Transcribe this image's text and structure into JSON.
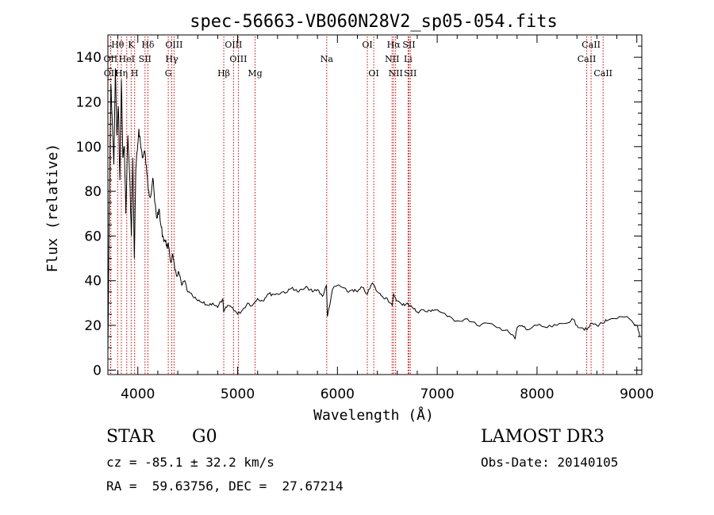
{
  "chart_data": {
    "type": "line",
    "title": "spec-56663-VB060N28V2_sp05-054.fits",
    "xlabel": "Wavelength (Å)",
    "ylabel": "Flux (relative)",
    "xlim": [
      3700,
      9050
    ],
    "ylim": [
      -2,
      150
    ],
    "xticks": [
      4000,
      5000,
      6000,
      7000,
      8000,
      9000
    ],
    "yticks": [
      0,
      20,
      40,
      60,
      80,
      100,
      120,
      140
    ],
    "grid": false,
    "series": [
      {
        "name": "spectrum",
        "color": "#000000",
        "x": [
          3700,
          3715,
          3730,
          3745,
          3760,
          3775,
          3790,
          3805,
          3820,
          3835,
          3850,
          3865,
          3880,
          3900,
          3920,
          3935,
          3950,
          3965,
          3980,
          3995,
          4010,
          4030,
          4050,
          4070,
          4090,
          4110,
          4130,
          4150,
          4170,
          4190,
          4210,
          4230,
          4250,
          4270,
          4290,
          4310,
          4330,
          4350,
          4370,
          4390,
          4410,
          4440,
          4470,
          4500,
          4550,
          4600,
          4650,
          4700,
          4750,
          4800,
          4850,
          4860,
          4900,
          4950,
          5000,
          5050,
          5100,
          5150,
          5200,
          5250,
          5300,
          5350,
          5400,
          5450,
          5500,
          5550,
          5600,
          5650,
          5700,
          5750,
          5800,
          5850,
          5890,
          5900,
          5950,
          6000,
          6050,
          6100,
          6150,
          6200,
          6250,
          6300,
          6350,
          6400,
          6450,
          6500,
          6550,
          6563,
          6600,
          6650,
          6700,
          6750,
          6800,
          6850,
          6900,
          6950,
          7000,
          7100,
          7200,
          7300,
          7400,
          7500,
          7600,
          7700,
          7780,
          7800,
          7850,
          7900,
          8000,
          8100,
          8200,
          8300,
          8350,
          8400,
          8450,
          8500,
          8550,
          8600,
          8650,
          8700,
          8800,
          8900,
          9000,
          9030
        ],
        "values": [
          8,
          75,
          128,
          110,
          92,
          135,
          105,
          118,
          85,
          130,
          95,
          100,
          70,
          105,
          85,
          60,
          95,
          50,
          90,
          98,
          108,
          100,
          95,
          98,
          88,
          80,
          78,
          86,
          75,
          68,
          72,
          65,
          60,
          58,
          56,
          55,
          48,
          52,
          45,
          42,
          44,
          38,
          40,
          35,
          33,
          31,
          30,
          29,
          30,
          28,
          32,
          26,
          29,
          28,
          25,
          27,
          30,
          29,
          32,
          31,
          34,
          34,
          34,
          35,
          35,
          37,
          35,
          36,
          37,
          35,
          36,
          33,
          38,
          24,
          36,
          38,
          37,
          35,
          36,
          35,
          37,
          34,
          39,
          35,
          33,
          32,
          29,
          34,
          31,
          29,
          30,
          28,
          26,
          27,
          26,
          27,
          27,
          24,
          22,
          23,
          20,
          21,
          19,
          18,
          14,
          19,
          20,
          18,
          20,
          19,
          20,
          21,
          23,
          20,
          19,
          18,
          21,
          20,
          21,
          22,
          23,
          24,
          20,
          15
        ]
      }
    ],
    "lines": [
      {
        "label": "Hθ",
        "x": 3798,
        "row": 0
      },
      {
        "label": "K",
        "x": 3933,
        "row": 0
      },
      {
        "label": "Hδ",
        "x": 4101,
        "row": 0
      },
      {
        "label": "OIII",
        "x": 4363,
        "row": 0
      },
      {
        "label": "OIII",
        "x": 4959,
        "row": 0
      },
      {
        "label": "OI",
        "x": 6300,
        "row": 0
      },
      {
        "label": "Hα",
        "x": 6563,
        "row": 0
      },
      {
        "label": "SII",
        "x": 6717,
        "row": 0
      },
      {
        "label": "CaII",
        "x": 8542,
        "row": 0
      },
      {
        "label": "OII",
        "x": 3727,
        "row": 1
      },
      {
        "label": "HeI",
        "x": 3889,
        "row": 1
      },
      {
        "label": "SII",
        "x": 4072,
        "row": 1
      },
      {
        "label": "Hγ",
        "x": 4340,
        "row": 1
      },
      {
        "label": "OIII",
        "x": 5007,
        "row": 1
      },
      {
        "label": "Na",
        "x": 5893,
        "row": 1
      },
      {
        "label": "NII",
        "x": 6548,
        "row": 1
      },
      {
        "label": "Li",
        "x": 6708,
        "row": 1
      },
      {
        "label": "CaII",
        "x": 8498,
        "row": 1
      },
      {
        "label": "OII",
        "x": 3729,
        "row": 2
      },
      {
        "label": "Hη",
        "x": 3835,
        "row": 2
      },
      {
        "label": "H",
        "x": 3968,
        "row": 2
      },
      {
        "label": "G",
        "x": 4305,
        "row": 2
      },
      {
        "label": "Hβ",
        "x": 4861,
        "row": 2
      },
      {
        "label": "Mg",
        "x": 5175,
        "row": 2
      },
      {
        "label": "OI",
        "x": 6364,
        "row": 2
      },
      {
        "label": "NII",
        "x": 6583,
        "row": 2
      },
      {
        "label": "SII",
        "x": 6731,
        "row": 2
      },
      {
        "label": "CaII",
        "x": 8662,
        "row": 2
      }
    ]
  },
  "info": {
    "object_class": "STAR",
    "subclass": "G0",
    "survey": "LAMOST DR3",
    "cz_line": "cz = -85.1 ± 32.2 km/s",
    "obs_date": "Obs-Date: 20140105",
    "coords": "RA =  59.63756, DEC =  27.67214"
  },
  "colors": {
    "line_marker": "#cc0000",
    "spectrum": "#000000",
    "axis": "#000000"
  }
}
